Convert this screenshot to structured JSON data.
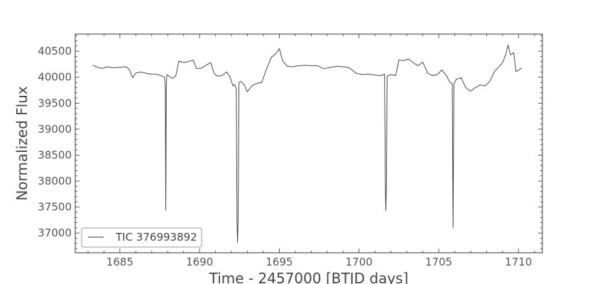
{
  "chart_data": {
    "type": "line",
    "title": "",
    "xlabel": "Time - 2457000 [BTJD days]",
    "ylabel": "Normalized Flux",
    "xlim": [
      1682.2,
      1711.5
    ],
    "ylim": [
      36620,
      40830
    ],
    "x_ticks": [
      1685,
      1690,
      1695,
      1700,
      1705,
      1710
    ],
    "y_ticks": [
      37000,
      37500,
      38000,
      38500,
      39000,
      39500,
      40000,
      40500
    ],
    "grid": false,
    "legend_position": "lower-left",
    "line_color": "#333333",
    "series": [
      {
        "name": "TIC 376993892",
        "points": [
          [
            1683.3,
            40230
          ],
          [
            1683.6,
            40190
          ],
          [
            1683.9,
            40170
          ],
          [
            1684.2,
            40200
          ],
          [
            1684.6,
            40180
          ],
          [
            1685.0,
            40190
          ],
          [
            1685.4,
            40200
          ],
          [
            1685.6,
            40140
          ],
          [
            1685.8,
            39990
          ],
          [
            1686.0,
            40080
          ],
          [
            1686.3,
            40100
          ],
          [
            1686.6,
            40080
          ],
          [
            1686.9,
            40060
          ],
          [
            1687.2,
            40060
          ],
          [
            1687.5,
            40040
          ],
          [
            1687.8,
            40000
          ],
          [
            1687.85,
            39800
          ],
          [
            1687.88,
            37440
          ],
          [
            1687.91,
            39800
          ],
          [
            1687.95,
            40050
          ],
          [
            1688.1,
            40020
          ],
          [
            1688.3,
            39980
          ],
          [
            1688.5,
            40020
          ],
          [
            1688.7,
            40310
          ],
          [
            1689.0,
            40280
          ],
          [
            1689.3,
            40300
          ],
          [
            1689.6,
            40330
          ],
          [
            1689.8,
            40170
          ],
          [
            1690.1,
            40170
          ],
          [
            1690.4,
            40230
          ],
          [
            1690.7,
            40280
          ],
          [
            1690.9,
            40080
          ],
          [
            1691.1,
            40020
          ],
          [
            1691.4,
            40030
          ],
          [
            1691.7,
            40100
          ],
          [
            1691.9,
            40010
          ],
          [
            1692.1,
            39830
          ],
          [
            1692.2,
            39860
          ],
          [
            1692.3,
            39780
          ],
          [
            1692.35,
            37200
          ],
          [
            1692.38,
            36820
          ],
          [
            1692.42,
            37300
          ],
          [
            1692.47,
            39900
          ],
          [
            1692.6,
            39920
          ],
          [
            1692.8,
            39850
          ],
          [
            1693.0,
            39720
          ],
          [
            1693.3,
            39840
          ],
          [
            1693.6,
            39880
          ],
          [
            1693.9,
            39900
          ],
          [
            1694.2,
            40160
          ],
          [
            1694.5,
            40380
          ],
          [
            1694.8,
            40460
          ],
          [
            1695.0,
            40550
          ],
          [
            1695.2,
            40320
          ],
          [
            1695.5,
            40210
          ],
          [
            1695.8,
            40200
          ],
          [
            1696.2,
            40220
          ],
          [
            1696.6,
            40230
          ],
          [
            1697.0,
            40220
          ],
          [
            1697.4,
            40220
          ],
          [
            1697.8,
            40160
          ],
          [
            1698.2,
            40190
          ],
          [
            1698.6,
            40210
          ],
          [
            1699.0,
            40200
          ],
          [
            1699.4,
            40180
          ],
          [
            1699.8,
            40080
          ],
          [
            1700.2,
            40050
          ],
          [
            1700.6,
            40060
          ],
          [
            1701.0,
            40040
          ],
          [
            1701.4,
            40030
          ],
          [
            1701.6,
            40060
          ],
          [
            1701.65,
            38000
          ],
          [
            1701.68,
            37430
          ],
          [
            1701.72,
            38000
          ],
          [
            1701.76,
            40020
          ],
          [
            1702.0,
            40050
          ],
          [
            1702.3,
            40030
          ],
          [
            1702.5,
            40330
          ],
          [
            1702.8,
            40320
          ],
          [
            1703.1,
            40350
          ],
          [
            1703.4,
            40280
          ],
          [
            1703.7,
            40220
          ],
          [
            1704.0,
            40290
          ],
          [
            1704.3,
            40080
          ],
          [
            1704.6,
            40030
          ],
          [
            1704.9,
            40050
          ],
          [
            1705.2,
            40140
          ],
          [
            1705.5,
            40020
          ],
          [
            1705.7,
            39900
          ],
          [
            1705.85,
            39880
          ],
          [
            1705.9,
            37100
          ],
          [
            1705.95,
            39870
          ],
          [
            1706.1,
            39960
          ],
          [
            1706.4,
            39990
          ],
          [
            1706.7,
            39800
          ],
          [
            1707.0,
            39730
          ],
          [
            1707.3,
            39800
          ],
          [
            1707.6,
            39850
          ],
          [
            1707.9,
            39830
          ],
          [
            1708.2,
            39920
          ],
          [
            1708.5,
            40110
          ],
          [
            1708.8,
            40210
          ],
          [
            1709.0,
            40280
          ],
          [
            1709.2,
            40430
          ],
          [
            1709.35,
            40620
          ],
          [
            1709.5,
            40430
          ],
          [
            1709.7,
            40470
          ],
          [
            1709.85,
            40110
          ],
          [
            1710.0,
            40130
          ],
          [
            1710.2,
            40180
          ]
        ]
      }
    ]
  }
}
